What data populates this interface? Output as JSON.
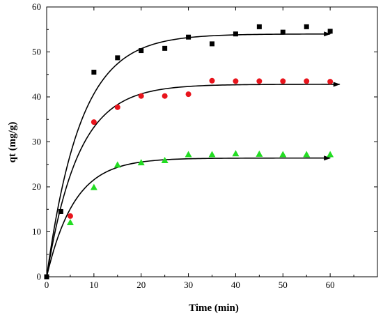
{
  "chart_data": {
    "type": "scatter",
    "title": "",
    "xlabel": "Time (min)",
    "ylabel": "qt (mg/g)",
    "xlim": [
      0,
      70
    ],
    "ylim": [
      0,
      60
    ],
    "x_ticks": [
      0,
      10,
      20,
      30,
      40,
      50,
      60
    ],
    "y_ticks": [
      0,
      10,
      20,
      30,
      40,
      50,
      60
    ],
    "grid": false,
    "legend": "none",
    "series": [
      {
        "marker": "square",
        "color": "#000000",
        "x": [
          0,
          3,
          10,
          15,
          20,
          25,
          30,
          35,
          40,
          45,
          50,
          55,
          60
        ],
        "y": [
          0,
          14.5,
          45.5,
          48.7,
          50.3,
          50.8,
          53.3,
          51.8,
          54.0,
          55.6,
          54.4,
          55.6,
          54.6
        ],
        "fit": {
          "qe": 54.0,
          "k": 0.14,
          "x_end": 60
        }
      },
      {
        "marker": "circle",
        "color": "#e8141c",
        "x": [
          5,
          10,
          15,
          20,
          25,
          30,
          35,
          40,
          45,
          50,
          55,
          60
        ],
        "y": [
          13.5,
          34.4,
          37.7,
          40.2,
          40.2,
          40.6,
          43.6,
          43.5,
          43.5,
          43.5,
          43.5,
          43.4
        ],
        "fit": {
          "qe": 42.8,
          "k": 0.15,
          "x_end": 62
        }
      },
      {
        "marker": "triangle",
        "color": "#22dd22",
        "x": [
          5,
          10,
          15,
          20,
          25,
          30,
          35,
          40,
          45,
          50,
          55,
          60
        ],
        "y": [
          12.1,
          19.9,
          24.9,
          25.4,
          25.9,
          27.2,
          27.2,
          27.4,
          27.3,
          27.2,
          27.2,
          27.2
        ],
        "fit": {
          "qe": 26.4,
          "k": 0.17,
          "x_end": 60
        }
      }
    ]
  }
}
